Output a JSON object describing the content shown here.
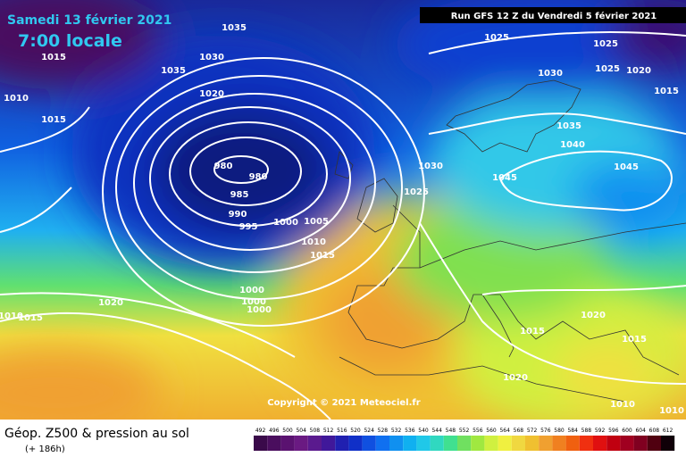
{
  "header": {
    "date": "Samedi 13 février 2021",
    "time": "7:00 locale",
    "run": "Run GFS 12 Z du Vendredi 5 février 2021"
  },
  "copyright": "Copyright © 2021 Meteociel.fr",
  "footer": {
    "title": "Géop. Z500 & pression au sol",
    "lead": "(+ 186h)"
  },
  "isobar_labels": [
    "1035",
    "1015",
    "1010",
    "1015",
    "1030",
    "1035",
    "1020",
    "980",
    "980",
    "985",
    "990",
    "995",
    "1000",
    "1005",
    "1010",
    "1015",
    "1000",
    "1000",
    "1000",
    "1020",
    "1010",
    "1015",
    "1025",
    "1030",
    "1025",
    "1025",
    "1020",
    "1015",
    "1030",
    "1035",
    "1040",
    "1045",
    "1045",
    "1025",
    "1020",
    "1015",
    "1015",
    "1020",
    "1010",
    "1010"
  ],
  "legend": {
    "labels": [
      492,
      496,
      500,
      504,
      508,
      512,
      516,
      520,
      524,
      528,
      532,
      536,
      540,
      544,
      548,
      552,
      556,
      560,
      564,
      568,
      572,
      576,
      580,
      584,
      588,
      592,
      596,
      600,
      604,
      608,
      612
    ],
    "colors": [
      "#3a0a4a",
      "#4a0e5e",
      "#5a1270",
      "#6a1a82",
      "#5a1a8e",
      "#40189a",
      "#2020b0",
      "#1030c8",
      "#1050e0",
      "#1070f0",
      "#1090f0",
      "#10b0f0",
      "#20c8e8",
      "#30d8c0",
      "#40e090",
      "#70e060",
      "#a0e840",
      "#d0f040",
      "#f0f040",
      "#f0d840",
      "#f0c030",
      "#f0a030",
      "#f08020",
      "#f06010",
      "#f03010",
      "#e01010",
      "#c00010",
      "#a00020",
      "#800020",
      "#500010",
      "#100008"
    ]
  }
}
